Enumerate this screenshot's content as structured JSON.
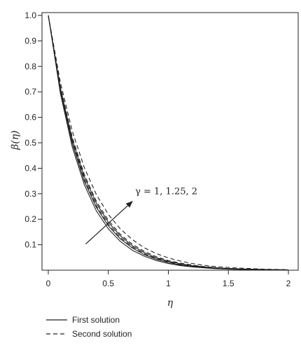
{
  "chart_data": {
    "type": "line",
    "xlabel": "η",
    "ylabel": "β(η)",
    "xlim": [
      0,
      2
    ],
    "ylim": [
      0,
      1
    ],
    "x_ticks": [
      {
        "value": 0,
        "label": "0"
      },
      {
        "value": 0.5,
        "label": "0.5"
      },
      {
        "value": 1,
        "label": "1"
      },
      {
        "value": 1.5,
        "label": "1.5"
      },
      {
        "value": 2,
        "label": "2"
      }
    ],
    "y_ticks": [
      {
        "value": 0.1,
        "label": "0.1"
      },
      {
        "value": 0.2,
        "label": "0.2"
      },
      {
        "value": 0.3,
        "label": "0.3"
      },
      {
        "value": 0.4,
        "label": "0.4"
      },
      {
        "value": 0.5,
        "label": "0.5"
      },
      {
        "value": 0.6,
        "label": "0.6"
      },
      {
        "value": 0.7,
        "label": "0.7"
      },
      {
        "value": 0.8,
        "label": "0.8"
      },
      {
        "value": 0.9,
        "label": "0.9"
      },
      {
        "value": 1,
        "label": "1.0"
      }
    ],
    "grid": false,
    "legend_position": "bottom-left",
    "x": [
      0,
      0.1,
      0.2,
      0.3,
      0.4,
      0.5,
      0.6,
      0.7,
      0.8,
      0.9,
      1.0,
      1.1,
      1.2,
      1.3,
      1.4,
      1.5,
      1.6,
      1.7,
      1.8,
      1.9,
      2.0
    ],
    "series": [
      {
        "name": "First solution",
        "gamma": "1",
        "line_style": "solid",
        "values": [
          1.0,
          0.695,
          0.483,
          0.336,
          0.233,
          0.162,
          0.113,
          0.078,
          0.055,
          0.038,
          0.026,
          0.018,
          0.013,
          0.009,
          0.006,
          0.004,
          0.003,
          0.002,
          0.0015,
          0.001,
          0.0007
        ]
      },
      {
        "name": "First solution",
        "gamma": "1.25",
        "line_style": "solid",
        "values": [
          1.0,
          0.705,
          0.497,
          0.35,
          0.247,
          0.174,
          0.123,
          0.087,
          0.061,
          0.043,
          0.03,
          0.021,
          0.015,
          0.011,
          0.008,
          0.005,
          0.004,
          0.003,
          0.002,
          0.0014,
          0.001
        ]
      },
      {
        "name": "First solution",
        "gamma": "2",
        "line_style": "solid",
        "values": [
          1.0,
          0.716,
          0.512,
          0.367,
          0.263,
          0.188,
          0.135,
          0.096,
          0.069,
          0.049,
          0.035,
          0.025,
          0.018,
          0.013,
          0.009,
          0.007,
          0.005,
          0.003,
          0.0025,
          0.0018,
          0.0013
        ]
      },
      {
        "name": "Second solution",
        "gamma": "1",
        "line_style": "dashed",
        "values": [
          1.0,
          0.71,
          0.503,
          0.357,
          0.253,
          0.18,
          0.128,
          0.091,
          0.064,
          0.046,
          0.032,
          0.023,
          0.016,
          0.012,
          0.008,
          0.006,
          0.004,
          0.003,
          0.002,
          0.0015,
          0.001
        ]
      },
      {
        "name": "Second solution",
        "gamma": "1.25",
        "line_style": "dashed",
        "values": [
          1.0,
          0.722,
          0.521,
          0.376,
          0.271,
          0.196,
          0.141,
          0.102,
          0.074,
          0.053,
          0.038,
          0.028,
          0.02,
          0.014,
          0.01,
          0.007,
          0.005,
          0.004,
          0.003,
          0.002,
          0.0015
        ]
      },
      {
        "name": "Second solution",
        "gamma": "2",
        "line_style": "dashed",
        "values": [
          1.0,
          0.738,
          0.545,
          0.403,
          0.297,
          0.219,
          0.162,
          0.12,
          0.088,
          0.065,
          0.048,
          0.036,
          0.026,
          0.019,
          0.014,
          0.011,
          0.008,
          0.006,
          0.004,
          0.003,
          0.002
        ]
      }
    ],
    "annotation": {
      "text": "γ = 1, 1.25, 2",
      "arrow_from": [
        0.3,
        0.1
      ],
      "arrow_to": [
        0.7,
        0.27
      ]
    },
    "legend": [
      {
        "label": "First solution",
        "line_style": "solid"
      },
      {
        "label": "Second solution",
        "line_style": "dashed"
      }
    ]
  }
}
